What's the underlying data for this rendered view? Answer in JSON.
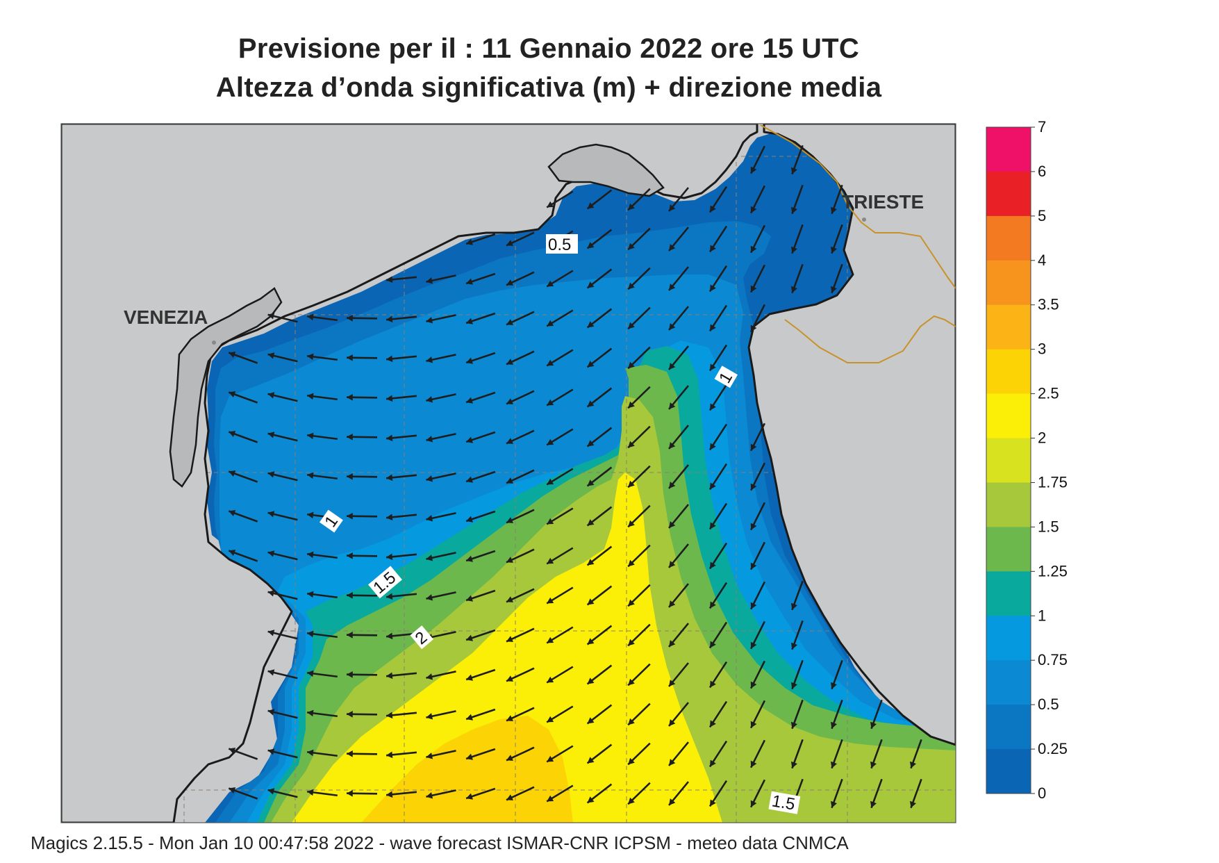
{
  "header": {
    "title_line1": "Previsione per il  :  11  Gennaio  2022   ore 15 UTC",
    "title_line2": "Altezza d’onda significativa (m) + direzione media"
  },
  "map": {
    "places": [
      {
        "name": "VENEZIA"
      },
      {
        "name": "TRIESTE"
      }
    ],
    "contour_labels": [
      "0.5",
      "1",
      "1",
      "1.5",
      "2",
      "1.5"
    ],
    "colors": {
      "land": "#c8c9cb",
      "lagoon_land": "#b8b9bb",
      "coast": "#1a1a1a",
      "border": "#c8922a",
      "grid": "#8a8070",
      "arrow": "#1e1e1e"
    },
    "wave_direction": "prevailing toward the southwest (offshore) and south (eastern coast)"
  },
  "legend": {
    "ticks": [
      "7",
      "6",
      "5",
      "4",
      "3.5",
      "3",
      "2.5",
      "2",
      "1.75",
      "1.5",
      "1.25",
      "1",
      "0.75",
      "0.5",
      "0.25",
      "0"
    ],
    "colors_top_to_bottom": [
      "#ee1167",
      "#ea2027",
      "#f47a21",
      "#f6941d",
      "#fbb315",
      "#fcd406",
      "#fcef07",
      "#d9e21f",
      "#a7c83b",
      "#6cb84d",
      "#0aa99e",
      "#059ae0",
      "#0b89d3",
      "#0b77c3",
      "#0a66b5"
    ]
  },
  "footer": {
    "text": "Magics 2.15.5 - Mon Jan 10 00:47:58 2022 - wave forecast  ISMAR-CNR  ICPSM - meteo data   CNMCA"
  }
}
